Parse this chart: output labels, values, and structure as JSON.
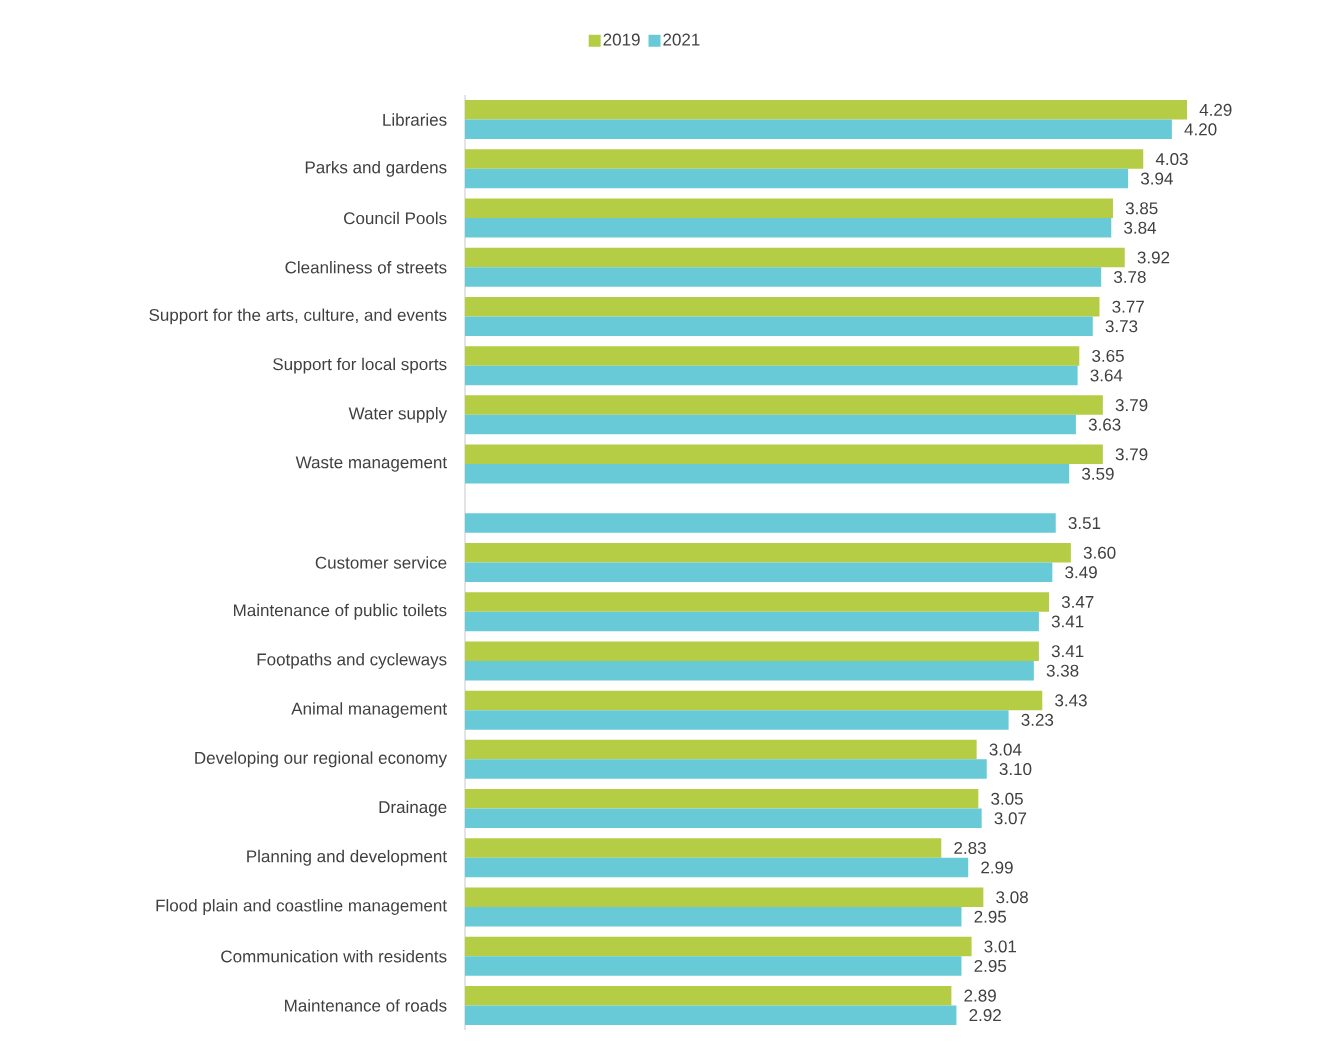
{
  "chart_data": {
    "type": "bar",
    "orientation": "horizontal",
    "legend": "top",
    "tick_labels": "y",
    "categories": [
      "Libraries",
      "Parks and gardens",
      "Council Pools",
      "Cleanliness of streets",
      "Support for the arts, culture, and events",
      "Support for local sports",
      "Water supply",
      "Waste management",
      null,
      "Customer service",
      "Maintenance of public toilets",
      "Footpaths and cycleways",
      "Animal management",
      "Developing our regional economy",
      "Drainage",
      "Planning and development",
      "Flood plain and coastline management",
      "Communication with residents",
      "Maintenance of roads"
    ],
    "series": [
      {
        "name": "2019",
        "color": "#b5cc45",
        "values": [
          4.29,
          4.03,
          3.85,
          3.92,
          3.77,
          3.65,
          3.79,
          3.79,
          null,
          3.6,
          3.47,
          3.41,
          3.43,
          3.04,
          3.05,
          2.83,
          3.08,
          3.01,
          2.89
        ],
        "value_labels": [
          "4.29",
          "4.03",
          "3.85",
          "3.92",
          "3.77",
          "3.65",
          "3.79",
          "3.79",
          null,
          "3.60",
          "3.47",
          "3.41",
          "3.43",
          "3.04",
          "3.05",
          "2.83",
          "3.08",
          "3.01",
          "2.89"
        ]
      },
      {
        "name": "2021",
        "color": "#68cad6",
        "values": [
          4.2,
          3.94,
          3.84,
          3.78,
          3.73,
          3.64,
          3.63,
          3.59,
          3.51,
          3.49,
          3.41,
          3.38,
          3.23,
          3.1,
          3.07,
          2.99,
          2.95,
          2.95,
          2.92
        ],
        "value_labels": [
          "4.20",
          "3.94",
          "3.84",
          "3.78",
          "3.73",
          "3.64",
          "3.63",
          "3.59",
          "3.51",
          "3.49",
          "3.41",
          "3.38",
          "3.23",
          "3.10",
          "3.07",
          "2.99",
          "2.95",
          "2.95",
          "2.92"
        ]
      }
    ]
  }
}
